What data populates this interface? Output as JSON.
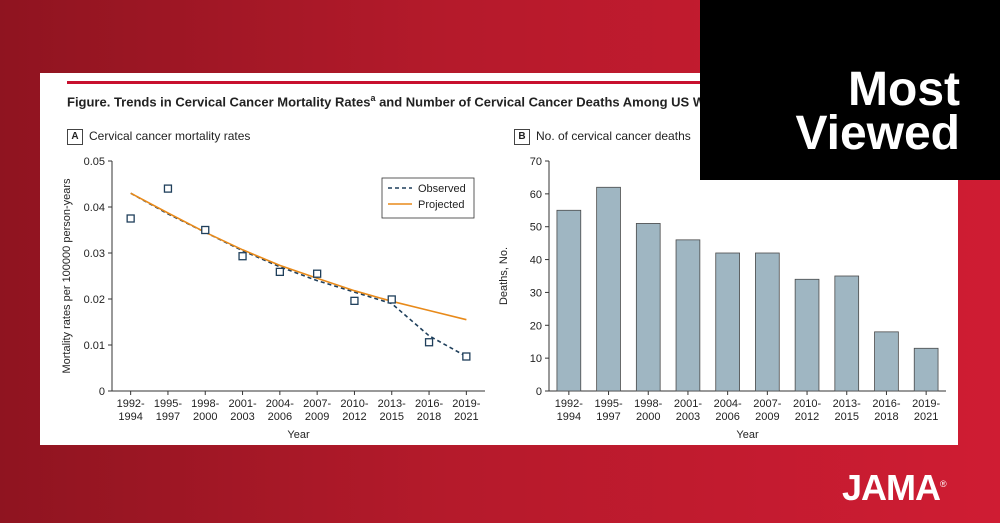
{
  "figure": {
    "title": "Figure. Trends in Cervical Cancer Mortality Rates",
    "title_sup": "a",
    "title_rest": " and Number of Cervical Cancer Deaths Among US Women A"
  },
  "badge": {
    "line1": "Most",
    "line2": "Viewed"
  },
  "logo": {
    "text": "JAMA",
    "mark": "®"
  },
  "colors": {
    "observed": "#1f3f5b",
    "projected": "#e88a1a",
    "bar_fill": "#9fb6c2",
    "bar_stroke": "#4a4a4a",
    "accent": "#c8102e"
  },
  "chart_data": [
    {
      "type": "line",
      "panel_letter": "A",
      "title": "Cervical cancer mortality rates",
      "xlabel": "Year",
      "ylabel": "Mortality rates per 100000 person-years",
      "categories": [
        [
          "1992-",
          "1994"
        ],
        [
          "1995-",
          "1997"
        ],
        [
          "1998-",
          "2000"
        ],
        [
          "2001-",
          "2003"
        ],
        [
          "2004-",
          "2006"
        ],
        [
          "2007-",
          "2009"
        ],
        [
          "2010-",
          "2012"
        ],
        [
          "2013-",
          "2015"
        ],
        [
          "2016-",
          "2018"
        ],
        [
          "2019-",
          "2021"
        ]
      ],
      "ylim": [
        0,
        0.05
      ],
      "yticks": [
        "0",
        "0.01",
        "0.02",
        "0.03",
        "0.04",
        "0.05"
      ],
      "legend_position": "top-right",
      "points": [
        0.0375,
        0.044,
        0.035,
        0.0293,
        0.0259,
        0.0255,
        0.0196,
        0.0199,
        0.0106,
        0.0075
      ],
      "series": [
        {
          "name": "Observed",
          "style": "dashed",
          "values": [
            0.043,
            0.0385,
            0.0345,
            0.0305,
            0.027,
            0.024,
            0.0215,
            0.019,
            0.012,
            0.0075
          ]
        },
        {
          "name": "Projected",
          "style": "solid",
          "values": [
            0.043,
            0.0387,
            0.0345,
            0.0307,
            0.0273,
            0.0245,
            0.0218,
            0.0195,
            0.0175,
            0.0155
          ]
        }
      ]
    },
    {
      "type": "bar",
      "panel_letter": "B",
      "title": "No. of cervical cancer deaths",
      "xlabel": "Year",
      "ylabel": "Deaths, No.",
      "categories": [
        [
          "1992-",
          "1994"
        ],
        [
          "1995-",
          "1997"
        ],
        [
          "1998-",
          "2000"
        ],
        [
          "2001-",
          "2003"
        ],
        [
          "2004-",
          "2006"
        ],
        [
          "2007-",
          "2009"
        ],
        [
          "2010-",
          "2012"
        ],
        [
          "2013-",
          "2015"
        ],
        [
          "2016-",
          "2018"
        ],
        [
          "2019-",
          "2021"
        ]
      ],
      "ylim": [
        0,
        70
      ],
      "yticks": [
        "0",
        "10",
        "20",
        "30",
        "40",
        "50",
        "60",
        "70"
      ],
      "values": [
        55,
        62,
        51,
        46,
        42,
        42,
        34,
        35,
        18,
        13
      ]
    }
  ]
}
